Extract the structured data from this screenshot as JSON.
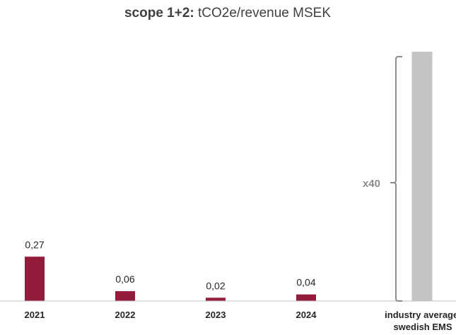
{
  "chart_data": {
    "type": "bar",
    "title_bold": "scope 1+2:",
    "title_rest": " tCO2e/revenue MSEK",
    "categories": [
      "2021",
      "2022",
      "2023",
      "2024",
      "industry average, swedish EMS"
    ],
    "category_lines": [
      [
        "2021"
      ],
      [
        "2022"
      ],
      [
        "2023"
      ],
      [
        "2024"
      ],
      [
        "industry average,",
        "swedish EMS"
      ]
    ],
    "values": [
      0.27,
      0.06,
      0.02,
      0.04,
      null
    ],
    "value_labels": [
      "0,27",
      "0,06",
      "0,02",
      "0,04",
      ""
    ],
    "benchmark": {
      "category": "industry average, swedish EMS",
      "multiplier_label": "x40",
      "relative_to_min": 40
    },
    "grid": false,
    "legend": "none",
    "colors": {
      "bar": "#951B3A",
      "benchmark_bar": "#C4C4C4",
      "brace": "#8C8C8C",
      "multiplier_text": "#8C8C8C",
      "axis": "#BFBFBF",
      "title": "#404040",
      "label_text": "#262626"
    }
  }
}
